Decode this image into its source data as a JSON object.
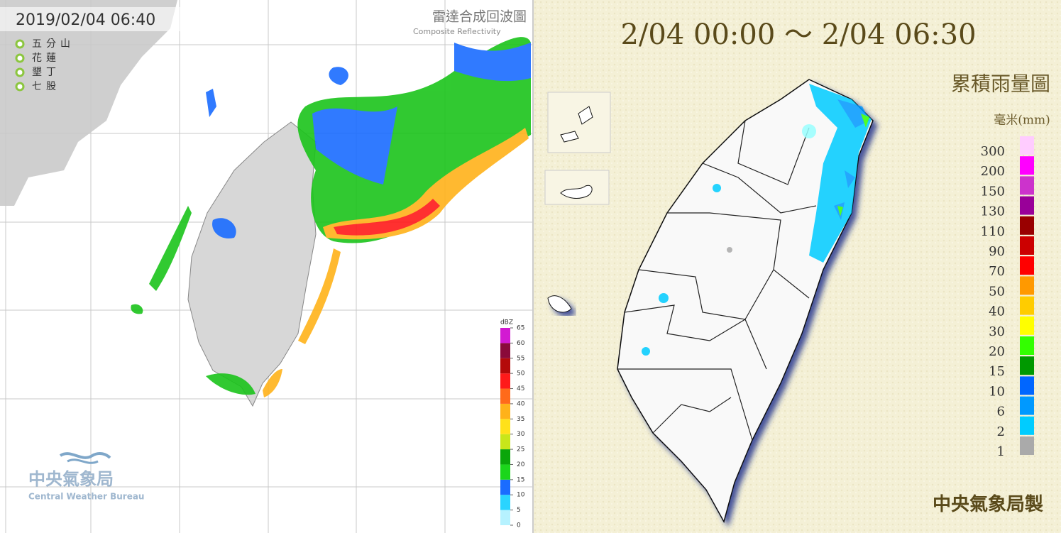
{
  "radar": {
    "timestamp": "2019/02/04 06:40",
    "title": "雷達合成回波圖",
    "subtitle": "Composite Reflectivity",
    "stations": [
      "五分山",
      "花蓮",
      "墾丁",
      "七股"
    ],
    "scale": {
      "unit": "dBZ",
      "ticks": [
        0,
        5,
        10,
        15,
        20,
        25,
        30,
        35,
        40,
        45,
        50,
        55,
        60,
        65
      ],
      "colors": [
        "#b6f2ff",
        "#2ad4ff",
        "#1a6cff",
        "#1bd61b",
        "#0aa60a",
        "#c8e61a",
        "#ffe11a",
        "#ffb21a",
        "#ff6a1a",
        "#ff1a1a",
        "#b40a0a",
        "#8a0a3a",
        "#d21ad2"
      ]
    },
    "logo": {
      "name": "中央氣象局",
      "name_en": "Central Weather Bureau"
    }
  },
  "rainfall": {
    "period": "2/04 00:00 ～ 2/04 06:30",
    "title": "累積雨量圖",
    "unit": "毫米(mm)",
    "scale": {
      "levels": [
        300,
        200,
        150,
        130,
        110,
        90,
        70,
        50,
        40,
        30,
        20,
        15,
        10,
        6,
        2,
        1
      ],
      "colors": [
        "#ffccff",
        "#ff00ff",
        "#cc33cc",
        "#990099",
        "#990000",
        "#cc0000",
        "#ff0000",
        "#ff9900",
        "#ffcc00",
        "#ffff00",
        "#33ff00",
        "#009900",
        "#0066ff",
        "#0099ff",
        "#00ccff",
        "#aaaaaa"
      ]
    },
    "credit": "中央氣象局製"
  }
}
